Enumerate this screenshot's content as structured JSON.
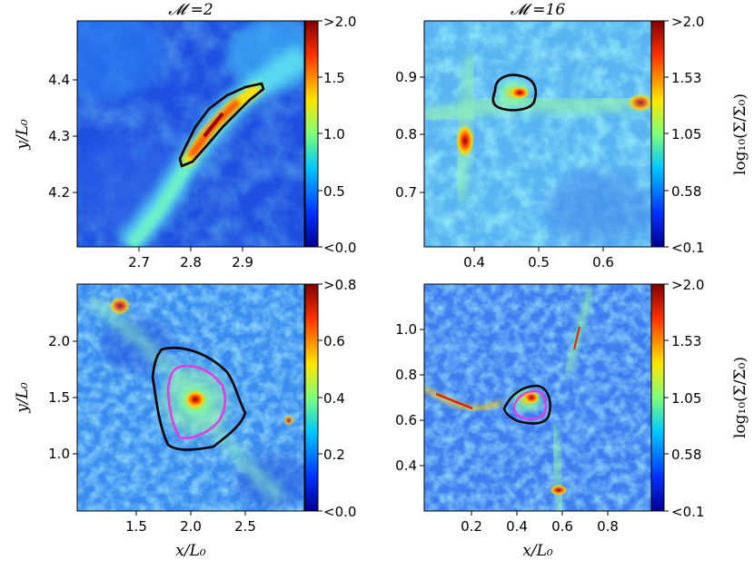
{
  "panels": [
    {
      "title": "𝓜 =2",
      "xticks": [
        "2.7",
        "2.8",
        "2.9"
      ],
      "yticks": [
        "4.4",
        "4.3",
        "4.2"
      ],
      "ylabel": "y/L₀",
      "cbar_ticks": [
        ">2.0",
        "1.5",
        "1.0",
        "0.5",
        "<0.0"
      ]
    },
    {
      "title": "𝓜 =16",
      "xticks": [
        "0.4",
        "0.5",
        "0.6"
      ],
      "yticks": [
        "0.9",
        "0.8",
        "0.7"
      ],
      "cbar_ticks": [
        ">2.0",
        "1.53",
        "1.05",
        "0.58",
        "<0.1"
      ],
      "cbar_label": "log₁₀(Σ/Σ₀)"
    },
    {
      "xticks": [
        "1.5",
        "2.0",
        "2.5"
      ],
      "yticks": [
        "2.0",
        "1.5",
        "1.0"
      ],
      "xlabel": "x/L₀",
      "ylabel": "y/L₀",
      "cbar_ticks": [
        ">0.8",
        "0.6",
        "0.4",
        "0.2",
        "<0.0"
      ]
    },
    {
      "xticks": [
        "0.2",
        "0.4",
        "0.6",
        "0.8"
      ],
      "yticks": [
        "1.0",
        "0.8",
        "0.6",
        "0.4"
      ],
      "xlabel": "x/L₀",
      "cbar_ticks": [
        ">2.0",
        "1.53",
        "1.05",
        "0.58",
        "<0.1"
      ],
      "cbar_label": "log₁₀(Σ/Σ₀)"
    }
  ],
  "colors": {
    "map_low": "#1a3fd9",
    "map_mid": "#4fc6ee",
    "map_high": "#c81400",
    "contour_black": "#000000",
    "contour_magenta": "#e33ce3"
  }
}
